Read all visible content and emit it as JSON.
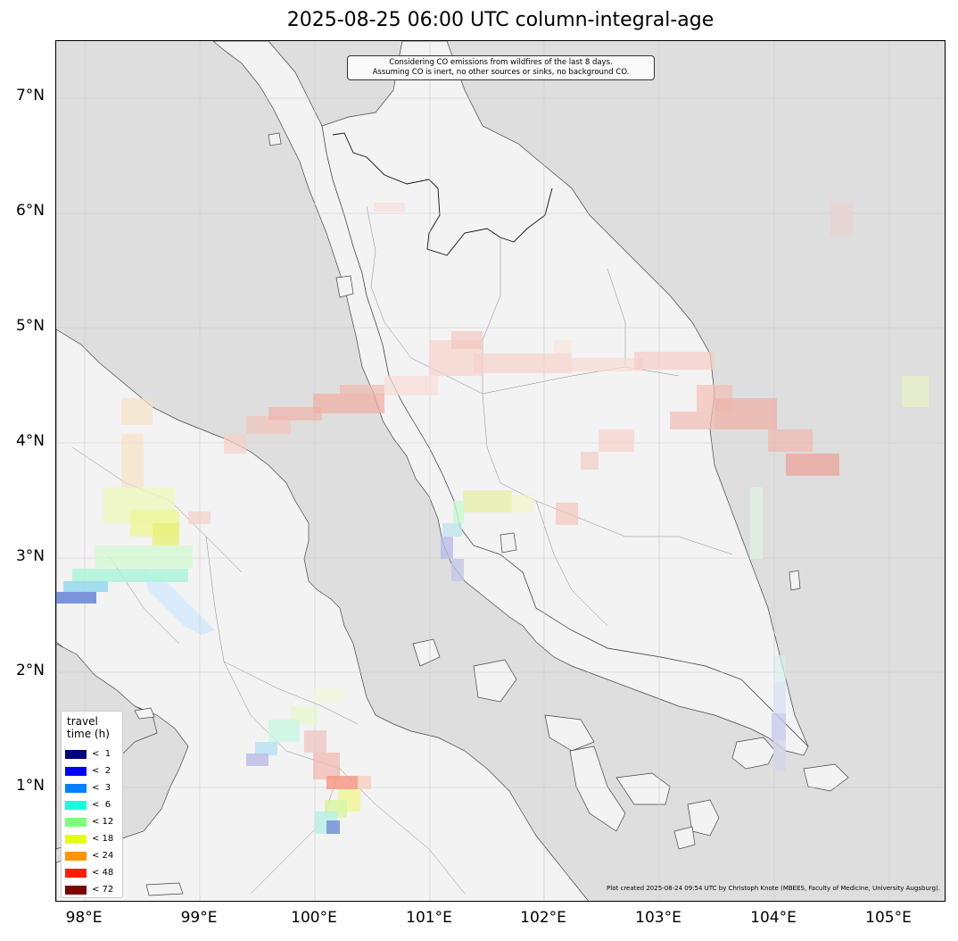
{
  "title": "2025-08-25 06:00 UTC column-integral-age",
  "notes": {
    "line1": "Considering CO emissions from wildfires of the last 8 days.",
    "line2": "Assuming CO is inert, no other sources or sinks, no background CO."
  },
  "credit": "Plot created 2025-08-24 09:54 UTC by Christoph Knote (MBEES, Faculty of Medicine, University Augsburg).",
  "axes": {
    "lat_ticks": [
      "7°N",
      "6°N",
      "5°N",
      "4°N",
      "3°N",
      "2°N",
      "1°N"
    ],
    "lon_ticks": [
      "98°E",
      "99°E",
      "100°E",
      "101°E",
      "102°E",
      "103°E",
      "104°E",
      "105°E"
    ]
  },
  "legend": {
    "title_line1": "travel",
    "title_line2": "time (h)",
    "items": [
      {
        "label": "<  1",
        "color": "#00007f"
      },
      {
        "label": "<  2",
        "color": "#0000ff"
      },
      {
        "label": "<  3",
        "color": "#0080ff"
      },
      {
        "label": "<  6",
        "color": "#15ffe1"
      },
      {
        "label": "< 12",
        "color": "#7cff79"
      },
      {
        "label": "< 18",
        "color": "#e4ff13"
      },
      {
        "label": "< 24",
        "color": "#ff9400"
      },
      {
        "label": "< 48",
        "color": "#ff1e00"
      },
      {
        "label": "< 72",
        "color": "#7f0000"
      }
    ]
  },
  "colors": {
    "sea": "#dedede",
    "land": "#f3f3f3",
    "coast": "#444444",
    "border": "#888888"
  }
}
